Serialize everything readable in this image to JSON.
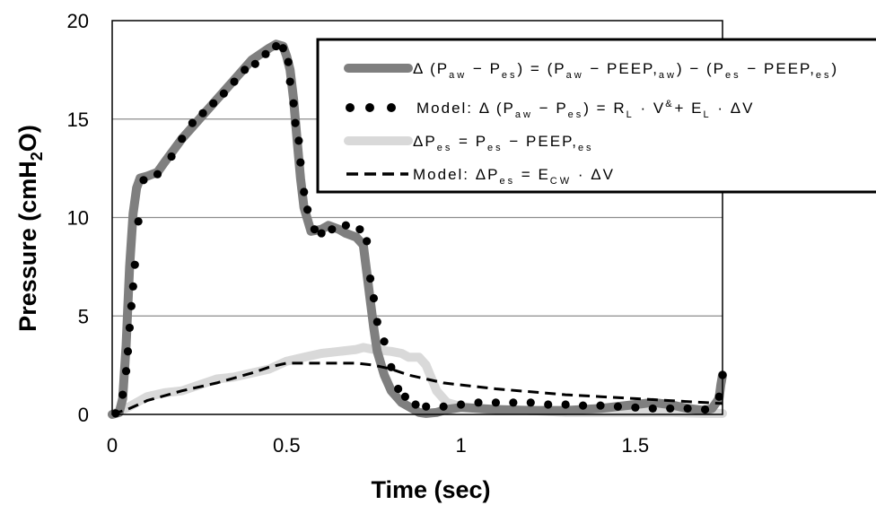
{
  "chart_data": {
    "type": "line",
    "title": "",
    "xlabel": "Time (sec)",
    "ylabel_parts": {
      "main": "Pressure (cmH",
      "sub": "2",
      "tail": "O)"
    },
    "xlim": [
      0,
      1.75
    ],
    "ylim": [
      0,
      20
    ],
    "xticks": [
      0,
      0.5,
      1,
      1.5
    ],
    "xtick_labels": [
      "0",
      "0.5",
      "1",
      "1.5"
    ],
    "yticks": [
      0,
      5,
      10,
      15,
      20
    ],
    "ytick_labels": [
      "0",
      "5",
      "10",
      "15",
      "20"
    ],
    "grid": "horizontal",
    "legend_position": "top-right",
    "colors": {
      "transpulmonary": "#7f7f7f",
      "transpulmonary_model": "#000000",
      "esophageal": "#d9d9d9",
      "esophageal_model": "#000000"
    },
    "legend": [
      {
        "id": "transpulmonary",
        "style": "thick-line",
        "runs": [
          [
            "Δ (P",
            ""
          ],
          [
            "aw",
            "sub"
          ],
          [
            " − P",
            ""
          ],
          [
            "es",
            "sub"
          ],
          [
            ") = (P",
            ""
          ],
          [
            "aw",
            "sub"
          ],
          [
            " − PEEP,",
            ""
          ],
          [
            "aw",
            "sub"
          ],
          [
            ") − (P",
            ""
          ],
          [
            "es",
            "sub"
          ],
          [
            " − PEEP,",
            ""
          ],
          [
            "es",
            "sub"
          ],
          [
            ")",
            ""
          ]
        ]
      },
      {
        "id": "transpulmonary_model",
        "style": "dots",
        "runs": [
          [
            "Model: Δ (P",
            ""
          ],
          [
            "aw",
            "sub"
          ],
          [
            " − P",
            ""
          ],
          [
            "es",
            "sub"
          ],
          [
            ") = R",
            ""
          ],
          [
            "L",
            "sub"
          ],
          [
            " · V",
            ""
          ],
          [
            "&",
            "sup"
          ],
          [
            "+ E",
            ""
          ],
          [
            "L",
            "sub"
          ],
          [
            " · ΔV",
            ""
          ]
        ]
      },
      {
        "id": "esophageal",
        "style": "thick-line",
        "runs": [
          [
            "ΔP",
            ""
          ],
          [
            "es",
            "sub"
          ],
          [
            " = P",
            ""
          ],
          [
            "es",
            "sub"
          ],
          [
            " − PEEP,",
            ""
          ],
          [
            "es",
            "sub"
          ]
        ]
      },
      {
        "id": "esophageal_model",
        "style": "dashed",
        "runs": [
          [
            "Model: ΔP",
            ""
          ],
          [
            "es",
            "sub"
          ],
          [
            " = E",
            ""
          ],
          [
            "CW",
            "sub"
          ],
          [
            " · ΔV",
            ""
          ]
        ]
      }
    ],
    "series": [
      {
        "id": "transpulmonary",
        "x": [
          0,
          0.02,
          0.03,
          0.04,
          0.05,
          0.06,
          0.07,
          0.08,
          0.1,
          0.13,
          0.15,
          0.2,
          0.25,
          0.3,
          0.35,
          0.4,
          0.45,
          0.47,
          0.49,
          0.5,
          0.51,
          0.52,
          0.53,
          0.54,
          0.55,
          0.57,
          0.6,
          0.62,
          0.65,
          0.67,
          0.7,
          0.72,
          0.73,
          0.74,
          0.75,
          0.76,
          0.78,
          0.8,
          0.83,
          0.86,
          0.88,
          0.9,
          0.93,
          0.96,
          1.0,
          1.05,
          1.1,
          1.2,
          1.3,
          1.4,
          1.5,
          1.55,
          1.6,
          1.65,
          1.7,
          1.72,
          1.74,
          1.745,
          1.75
        ],
        "y": [
          0,
          0.1,
          0.8,
          3.5,
          7.5,
          10.2,
          11.5,
          12,
          12.1,
          12.3,
          12.8,
          14,
          15,
          16,
          17,
          18,
          18.6,
          18.8,
          18.7,
          18.2,
          17.5,
          16,
          14,
          12,
          10.5,
          9.3,
          9.4,
          9.6,
          9.4,
          9.2,
          9,
          8.6,
          7.2,
          5.8,
          4.4,
          3.2,
          2,
          1.2,
          0.6,
          0.3,
          0.1,
          0.05,
          0.1,
          0.25,
          0.35,
          0.3,
          0.25,
          0.2,
          0.2,
          0.3,
          0.5,
          0.6,
          0.5,
          0.3,
          0.2,
          0.3,
          0.8,
          1.5,
          2
        ]
      },
      {
        "id": "transpulmonary_model",
        "x": [
          0.01,
          0.03,
          0.04,
          0.045,
          0.05,
          0.055,
          0.06,
          0.065,
          0.075,
          0.09,
          0.13,
          0.17,
          0.2,
          0.23,
          0.26,
          0.29,
          0.32,
          0.35,
          0.38,
          0.41,
          0.44,
          0.47,
          0.49,
          0.505,
          0.51,
          0.52,
          0.525,
          0.535,
          0.54,
          0.55,
          0.56,
          0.58,
          0.6,
          0.63,
          0.67,
          0.71,
          0.73,
          0.74,
          0.75,
          0.76,
          0.78,
          0.8,
          0.82,
          0.84,
          0.87,
          0.9,
          0.95,
          1.0,
          1.05,
          1.1,
          1.15,
          1.2,
          1.25,
          1.3,
          1.35,
          1.4,
          1.45,
          1.5,
          1.55,
          1.6,
          1.65,
          1.7,
          1.74,
          1.75
        ],
        "y": [
          0.05,
          1,
          2.2,
          3.2,
          4.4,
          5.5,
          6.5,
          7.6,
          9.8,
          11.9,
          12.2,
          13.1,
          14,
          14.8,
          15.3,
          15.8,
          16.3,
          16.9,
          17.5,
          17.8,
          18.3,
          18.7,
          18.6,
          17.9,
          16.9,
          15.8,
          14.8,
          13.9,
          12.8,
          11.3,
          10.4,
          9.4,
          9.2,
          9.4,
          9.6,
          9.4,
          8.8,
          6.9,
          5.9,
          4.7,
          3.7,
          2.4,
          1.3,
          0.9,
          0.5,
          0.4,
          0.4,
          0.5,
          0.6,
          0.6,
          0.6,
          0.6,
          0.5,
          0.5,
          0.45,
          0.45,
          0.4,
          0.35,
          0.3,
          0.3,
          0.3,
          0.25,
          0.9,
          2
        ]
      },
      {
        "id": "esophageal",
        "x": [
          0,
          0.05,
          0.1,
          0.15,
          0.2,
          0.25,
          0.3,
          0.35,
          0.4,
          0.45,
          0.5,
          0.55,
          0.6,
          0.65,
          0.7,
          0.72,
          0.75,
          0.8,
          0.83,
          0.85,
          0.88,
          0.9,
          0.93,
          0.96,
          1.0,
          1.05,
          1.1,
          1.2,
          1.3,
          1.4,
          1.5,
          1.6,
          1.7,
          1.75
        ],
        "y": [
          0,
          0.4,
          0.9,
          1.1,
          1.2,
          1.5,
          1.8,
          1.9,
          2.1,
          2.3,
          2.7,
          2.9,
          3.1,
          3.2,
          3.3,
          3.4,
          3.3,
          3.2,
          3.1,
          2.9,
          2.9,
          2.5,
          1.2,
          0.6,
          0.4,
          0.3,
          0.2,
          0.2,
          0.1,
          0.1,
          0.1,
          0.1,
          0.05,
          0.05
        ]
      },
      {
        "id": "esophageal_model",
        "x": [
          0,
          0.05,
          0.1,
          0.2,
          0.3,
          0.4,
          0.45,
          0.5,
          0.55,
          0.6,
          0.65,
          0.7,
          0.75,
          0.8,
          0.85,
          0.9,
          0.95,
          1.0,
          1.1,
          1.2,
          1.3,
          1.4,
          1.5,
          1.6,
          1.7,
          1.75
        ],
        "y": [
          0,
          0.3,
          0.7,
          1.2,
          1.6,
          2.1,
          2.4,
          2.6,
          2.6,
          2.6,
          2.6,
          2.6,
          2.5,
          2.3,
          2.0,
          1.8,
          1.6,
          1.5,
          1.3,
          1.15,
          1.0,
          0.9,
          0.8,
          0.7,
          0.6,
          0.55
        ]
      }
    ]
  }
}
